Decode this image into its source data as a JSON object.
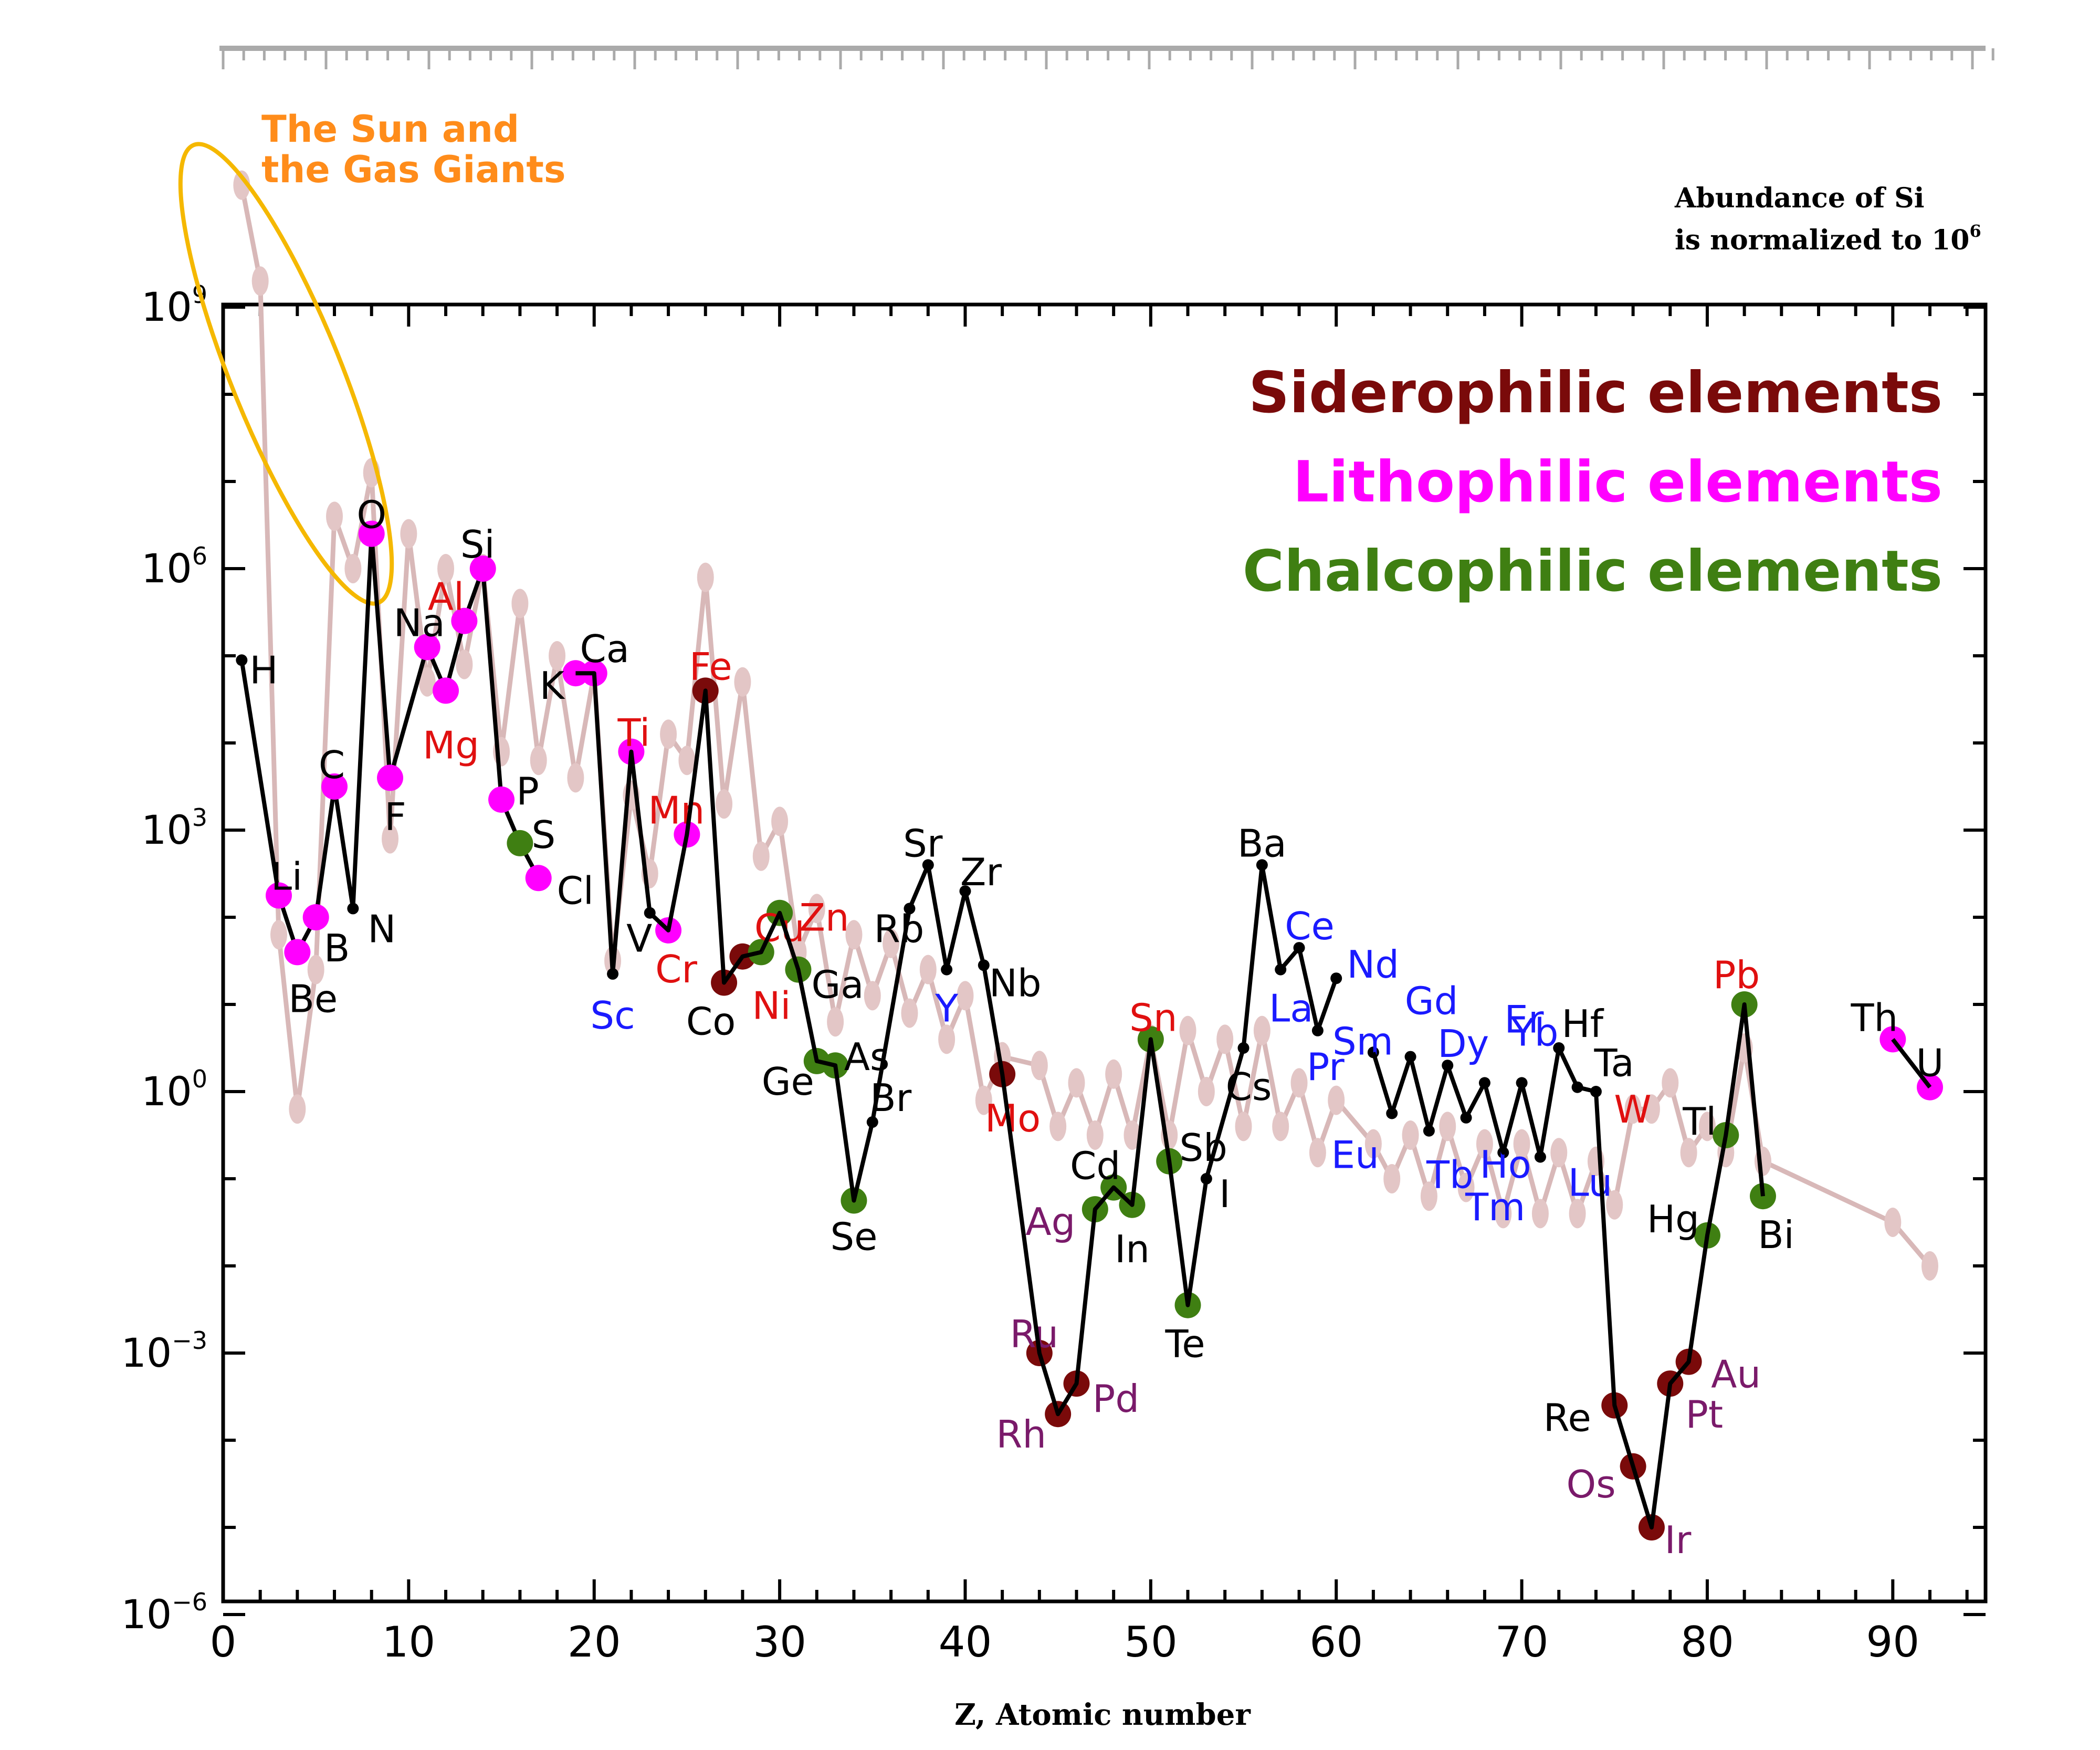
{
  "chart_data": {
    "type": "scatter",
    "xlabel": "Z, Atomic number",
    "y_scale": "log",
    "xlim": [
      0,
      95
    ],
    "ylim_exponent": [
      -6,
      9
    ],
    "x_ticks": [
      0,
      10,
      20,
      30,
      40,
      50,
      60,
      70,
      80,
      90
    ],
    "y_tick_labels": [
      {
        "base": "10",
        "exp": "9",
        "log": 9
      },
      {
        "base": "10",
        "exp": "6",
        "log": 6
      },
      {
        "base": "10",
        "exp": "3",
        "log": 3
      },
      {
        "base": "10",
        "exp": "0",
        "log": 0
      },
      {
        "base": "10",
        "exp": "−3",
        "log": -3
      },
      {
        "base": "10",
        "exp": "−6",
        "log": -6
      }
    ],
    "normalization_note": {
      "line1": "Abundance of Si",
      "line2": "is normalized to 10",
      "exp": "6"
    },
    "legend": {
      "placement": "top-right",
      "items": [
        {
          "label": "Siderophilic elements",
          "color": "#7a0a0a"
        },
        {
          "label": "Lithophilic elements",
          "color": "#ff00ff"
        },
        {
          "label": "Chalcophilic elements",
          "color": "#3f7f12"
        }
      ]
    },
    "annotation": {
      "line1": "The Sun and",
      "line2": "the Gas Giants",
      "color": "#ff8c1a",
      "ellipse_color": "#f5b800"
    },
    "colors": {
      "siderophile": "#7a0a0a",
      "lithophile": "#ff00ff",
      "chalcophile": "#3f7f12",
      "label_black": "#000000",
      "label_red": "#e01010",
      "label_blue": "#1a1aff",
      "label_purple": "#7a1a6a",
      "solar_line": "#d8b8b8",
      "solar_marker": "#e3c6c6",
      "earth_line": "#000000"
    },
    "series": [
      {
        "name": "Earth crust",
        "points": [
          {
            "z": 1,
            "logy": 4.95,
            "label": "H",
            "label_color": "black",
            "marker": "small"
          },
          {
            "z": 3,
            "logy": 2.25,
            "label": "Li",
            "label_color": "black",
            "marker": "lithophile"
          },
          {
            "z": 4,
            "logy": 1.6,
            "label": "Be",
            "label_color": "black",
            "marker": "lithophile"
          },
          {
            "z": 5,
            "logy": 2.0,
            "label": "B",
            "label_color": "black",
            "marker": "lithophile"
          },
          {
            "z": 6,
            "logy": 3.5,
            "label": "C",
            "label_color": "black",
            "marker": "lithophile"
          },
          {
            "z": 7,
            "logy": 2.1,
            "label": "N",
            "label_color": "black",
            "marker": "small"
          },
          {
            "z": 8,
            "logy": 6.4,
            "label": "O",
            "label_color": "black",
            "marker": "lithophile"
          },
          {
            "z": 9,
            "logy": 3.6,
            "label": "F",
            "label_color": "black",
            "marker": "lithophile"
          },
          {
            "z": 11,
            "logy": 5.1,
            "label": "Na",
            "label_color": "black",
            "marker": "lithophile"
          },
          {
            "z": 12,
            "logy": 4.6,
            "label": "Mg",
            "label_color": "red",
            "marker": "lithophile"
          },
          {
            "z": 13,
            "logy": 5.4,
            "label": "Al",
            "label_color": "red",
            "marker": "lithophile"
          },
          {
            "z": 14,
            "logy": 6.0,
            "label": "Si",
            "label_color": "black",
            "marker": "lithophile"
          },
          {
            "z": 15,
            "logy": 3.35,
            "label": "P",
            "label_color": "black",
            "marker": "lithophile"
          },
          {
            "z": 16,
            "logy": 2.85,
            "label": "S",
            "label_color": "black",
            "marker": "chalcophile"
          },
          {
            "z": 17,
            "logy": 2.45,
            "label": "Cl",
            "label_color": "black",
            "marker": "lithophile"
          },
          {
            "z": 19,
            "logy": 4.8,
            "label": "K",
            "label_color": "black",
            "marker": "lithophile"
          },
          {
            "z": 20,
            "logy": 4.8,
            "label": "Ca",
            "label_color": "black",
            "marker": "lithophile"
          },
          {
            "z": 21,
            "logy": 1.35,
            "label": "Sc",
            "label_color": "blue",
            "marker": "small"
          },
          {
            "z": 22,
            "logy": 3.9,
            "label": "Ti",
            "label_color": "red",
            "marker": "lithophile"
          },
          {
            "z": 23,
            "logy": 2.05,
            "label": "V",
            "label_color": "black",
            "marker": "small"
          },
          {
            "z": 24,
            "logy": 1.85,
            "label": "Cr",
            "label_color": "red",
            "marker": "lithophile"
          },
          {
            "z": 25,
            "logy": 2.95,
            "label": "Mn",
            "label_color": "red",
            "marker": "lithophile"
          },
          {
            "z": 26,
            "logy": 4.6,
            "label": "Fe",
            "label_color": "red",
            "marker": "siderophile"
          },
          {
            "z": 27,
            "logy": 1.25,
            "label": "Co",
            "label_color": "black",
            "marker": "siderophile"
          },
          {
            "z": 28,
            "logy": 1.55,
            "label": "Ni",
            "label_color": "red",
            "marker": "siderophile"
          },
          {
            "z": 29,
            "logy": 1.6,
            "label": "Cu",
            "label_color": "red",
            "marker": "chalcophile"
          },
          {
            "z": 30,
            "logy": 2.05,
            "label": "Zn",
            "label_color": "red",
            "marker": "chalcophile"
          },
          {
            "z": 31,
            "logy": 1.4,
            "label": "Ga",
            "label_color": "black",
            "marker": "chalcophile"
          },
          {
            "z": 32,
            "logy": 0.35,
            "label": "Ge",
            "label_color": "black",
            "marker": "chalcophile"
          },
          {
            "z": 33,
            "logy": 0.3,
            "label": "As",
            "label_color": "black",
            "marker": "chalcophile"
          },
          {
            "z": 34,
            "logy": -1.25,
            "label": "Se",
            "label_color": "black",
            "marker": "chalcophile"
          },
          {
            "z": 35,
            "logy": -0.35,
            "label": "Br",
            "label_color": "black",
            "marker": "small"
          },
          {
            "z": 37,
            "logy": 2.1,
            "label": "Rb",
            "label_color": "black",
            "marker": "small"
          },
          {
            "z": 38,
            "logy": 2.6,
            "label": "Sr",
            "label_color": "black",
            "marker": "small"
          },
          {
            "z": 39,
            "logy": 1.4,
            "label": "Y",
            "label_color": "blue",
            "marker": "small"
          },
          {
            "z": 40,
            "logy": 2.3,
            "label": "Zr",
            "label_color": "black",
            "marker": "small"
          },
          {
            "z": 41,
            "logy": 1.45,
            "label": "Nb",
            "label_color": "black",
            "marker": "small"
          },
          {
            "z": 42,
            "logy": 0.2,
            "label": "Mo",
            "label_color": "red",
            "marker": "siderophile"
          },
          {
            "z": 44,
            "logy": -3.0,
            "label": "Ru",
            "label_color": "purple",
            "marker": "siderophile"
          },
          {
            "z": 45,
            "logy": -3.7,
            "label": "Rh",
            "label_color": "purple",
            "marker": "siderophile"
          },
          {
            "z": 46,
            "logy": -3.35,
            "label": "Pd",
            "label_color": "purple",
            "marker": "siderophile"
          },
          {
            "z": 47,
            "logy": -1.35,
            "label": "Ag",
            "label_color": "purple",
            "marker": "chalcophile"
          },
          {
            "z": 48,
            "logy": -1.1,
            "label": "Cd",
            "label_color": "black",
            "marker": "chalcophile"
          },
          {
            "z": 49,
            "logy": -1.3,
            "label": "In",
            "label_color": "black",
            "marker": "chalcophile"
          },
          {
            "z": 50,
            "logy": 0.6,
            "label": "Sn",
            "label_color": "red",
            "marker": "chalcophile"
          },
          {
            "z": 51,
            "logy": -0.8,
            "label": "Sb",
            "label_color": "black",
            "marker": "chalcophile"
          },
          {
            "z": 52,
            "logy": -2.45,
            "label": "Te",
            "label_color": "black",
            "marker": "chalcophile"
          },
          {
            "z": 53,
            "logy": -1.0,
            "label": "I",
            "label_color": "black",
            "marker": "small"
          },
          {
            "z": 55,
            "logy": 0.5,
            "label": "Cs",
            "label_color": "black",
            "marker": "small"
          },
          {
            "z": 56,
            "logy": 2.6,
            "label": "Ba",
            "label_color": "black",
            "marker": "small"
          },
          {
            "z": 57,
            "logy": 1.4,
            "label": "La",
            "label_color": "blue",
            "marker": "small"
          },
          {
            "z": 58,
            "logy": 1.65,
            "label": "Ce",
            "label_color": "blue",
            "marker": "small"
          },
          {
            "z": 59,
            "logy": 0.7,
            "label": "Pr",
            "label_color": "blue",
            "marker": "small"
          },
          {
            "z": 60,
            "logy": 1.3,
            "label": "Nd",
            "label_color": "blue",
            "marker": "small"
          },
          {
            "z": 62,
            "logy": 0.45,
            "label": "Sm",
            "label_color": "blue",
            "marker": "small"
          },
          {
            "z": 63,
            "logy": -0.25,
            "label": "Eu",
            "label_color": "blue",
            "marker": "small"
          },
          {
            "z": 64,
            "logy": 0.4,
            "label": "Gd",
            "label_color": "blue",
            "marker": "small"
          },
          {
            "z": 65,
            "logy": -0.45,
            "label": "Tb",
            "label_color": "blue",
            "marker": "small"
          },
          {
            "z": 66,
            "logy": 0.3,
            "label": "Dy",
            "label_color": "blue",
            "marker": "small"
          },
          {
            "z": 67,
            "logy": -0.3,
            "label": "Ho",
            "label_color": "blue",
            "marker": "small"
          },
          {
            "z": 68,
            "logy": 0.1,
            "label": "Er",
            "label_color": "blue",
            "marker": "small"
          },
          {
            "z": 69,
            "logy": -0.7,
            "label": "Tm",
            "label_color": "blue",
            "marker": "small"
          },
          {
            "z": 70,
            "logy": 0.1,
            "label": "Yb",
            "label_color": "blue",
            "marker": "small"
          },
          {
            "z": 71,
            "logy": -0.75,
            "label": "Lu",
            "label_color": "blue",
            "marker": "small"
          },
          {
            "z": 72,
            "logy": 0.5,
            "label": "Hf",
            "label_color": "black",
            "marker": "small"
          },
          {
            "z": 73,
            "logy": 0.05,
            "label": "Ta",
            "label_color": "black",
            "marker": "small"
          },
          {
            "z": 74,
            "logy": 0.0,
            "label": "W",
            "label_color": "red",
            "marker": "small"
          },
          {
            "z": 75,
            "logy": -3.6,
            "label": "Re",
            "label_color": "black",
            "marker": "siderophile"
          },
          {
            "z": 76,
            "logy": -4.3,
            "label": "Os",
            "label_color": "purple",
            "marker": "siderophile"
          },
          {
            "z": 77,
            "logy": -5.0,
            "label": "Ir",
            "label_color": "purple",
            "marker": "siderophile"
          },
          {
            "z": 78,
            "logy": -3.35,
            "label": "Pt",
            "label_color": "purple",
            "marker": "siderophile"
          },
          {
            "z": 79,
            "logy": -3.1,
            "label": "Au",
            "label_color": "purple",
            "marker": "siderophile"
          },
          {
            "z": 80,
            "logy": -1.65,
            "label": "Hg",
            "label_color": "black",
            "marker": "chalcophile"
          },
          {
            "z": 81,
            "logy": -0.5,
            "label": "Tl",
            "label_color": "black",
            "marker": "chalcophile"
          },
          {
            "z": 82,
            "logy": 1.0,
            "label": "Pb",
            "label_color": "red",
            "marker": "chalcophile"
          },
          {
            "z": 83,
            "logy": -1.2,
            "label": "Bi",
            "label_color": "black",
            "marker": "chalcophile"
          },
          {
            "z": 90,
            "logy": 0.6,
            "label": "Th",
            "label_color": "black",
            "marker": "lithophile"
          },
          {
            "z": 92,
            "logy": 0.05,
            "label": "U",
            "label_color": "black",
            "marker": "lithophile"
          }
        ]
      },
      {
        "name": "Solar",
        "points": [
          [
            1,
            10.4
          ],
          [
            2,
            9.3
          ],
          [
            3,
            1.8
          ],
          [
            4,
            -0.2
          ],
          [
            5,
            1.4
          ],
          [
            6,
            6.6
          ],
          [
            7,
            6.0
          ],
          [
            8,
            7.1
          ],
          [
            9,
            2.9
          ],
          [
            10,
            6.4
          ],
          [
            11,
            4.7
          ],
          [
            12,
            6.0
          ],
          [
            13,
            4.9
          ],
          [
            14,
            6.0
          ],
          [
            15,
            3.9
          ],
          [
            16,
            5.6
          ],
          [
            17,
            3.8
          ],
          [
            18,
            5.0
          ],
          [
            19,
            3.6
          ],
          [
            20,
            4.8
          ],
          [
            21,
            1.5
          ],
          [
            22,
            3.4
          ],
          [
            23,
            2.5
          ],
          [
            24,
            4.1
          ],
          [
            25,
            3.8
          ],
          [
            26,
            5.9
          ],
          [
            27,
            3.3
          ],
          [
            28,
            4.7
          ],
          [
            29,
            2.7
          ],
          [
            30,
            3.1
          ],
          [
            31,
            1.6
          ],
          [
            32,
            2.1
          ],
          [
            33,
            0.8
          ],
          [
            34,
            1.8
          ],
          [
            35,
            1.1
          ],
          [
            36,
            1.7
          ],
          [
            37,
            0.9
          ],
          [
            38,
            1.4
          ],
          [
            39,
            0.6
          ],
          [
            40,
            1.1
          ],
          [
            41,
            -0.1
          ],
          [
            42,
            0.4
          ],
          [
            44,
            0.3
          ],
          [
            45,
            -0.4
          ],
          [
            46,
            0.1
          ],
          [
            47,
            -0.5
          ],
          [
            48,
            0.2
          ],
          [
            49,
            -0.5
          ],
          [
            50,
            0.6
          ],
          [
            51,
            -0.5
          ],
          [
            52,
            0.7
          ],
          [
            53,
            0.0
          ],
          [
            54,
            0.6
          ],
          [
            55,
            -0.4
          ],
          [
            56,
            0.7
          ],
          [
            57,
            -0.4
          ],
          [
            58,
            0.1
          ],
          [
            59,
            -0.7
          ],
          [
            60,
            -0.1
          ],
          [
            62,
            -0.6
          ],
          [
            63,
            -1.0
          ],
          [
            64,
            -0.5
          ],
          [
            65,
            -1.2
          ],
          [
            66,
            -0.4
          ],
          [
            67,
            -1.1
          ],
          [
            68,
            -0.6
          ],
          [
            69,
            -1.4
          ],
          [
            70,
            -0.6
          ],
          [
            71,
            -1.4
          ],
          [
            72,
            -0.7
          ],
          [
            73,
            -1.4
          ],
          [
            74,
            -0.8
          ],
          [
            75,
            -1.3
          ],
          [
            76,
            -0.2
          ],
          [
            77,
            -0.2
          ],
          [
            78,
            0.1
          ],
          [
            79,
            -0.7
          ],
          [
            80,
            -0.4
          ],
          [
            81,
            -0.7
          ],
          [
            82,
            0.5
          ],
          [
            83,
            -0.8
          ],
          [
            90,
            -1.5
          ],
          [
            92,
            -2.0
          ]
        ]
      }
    ]
  }
}
